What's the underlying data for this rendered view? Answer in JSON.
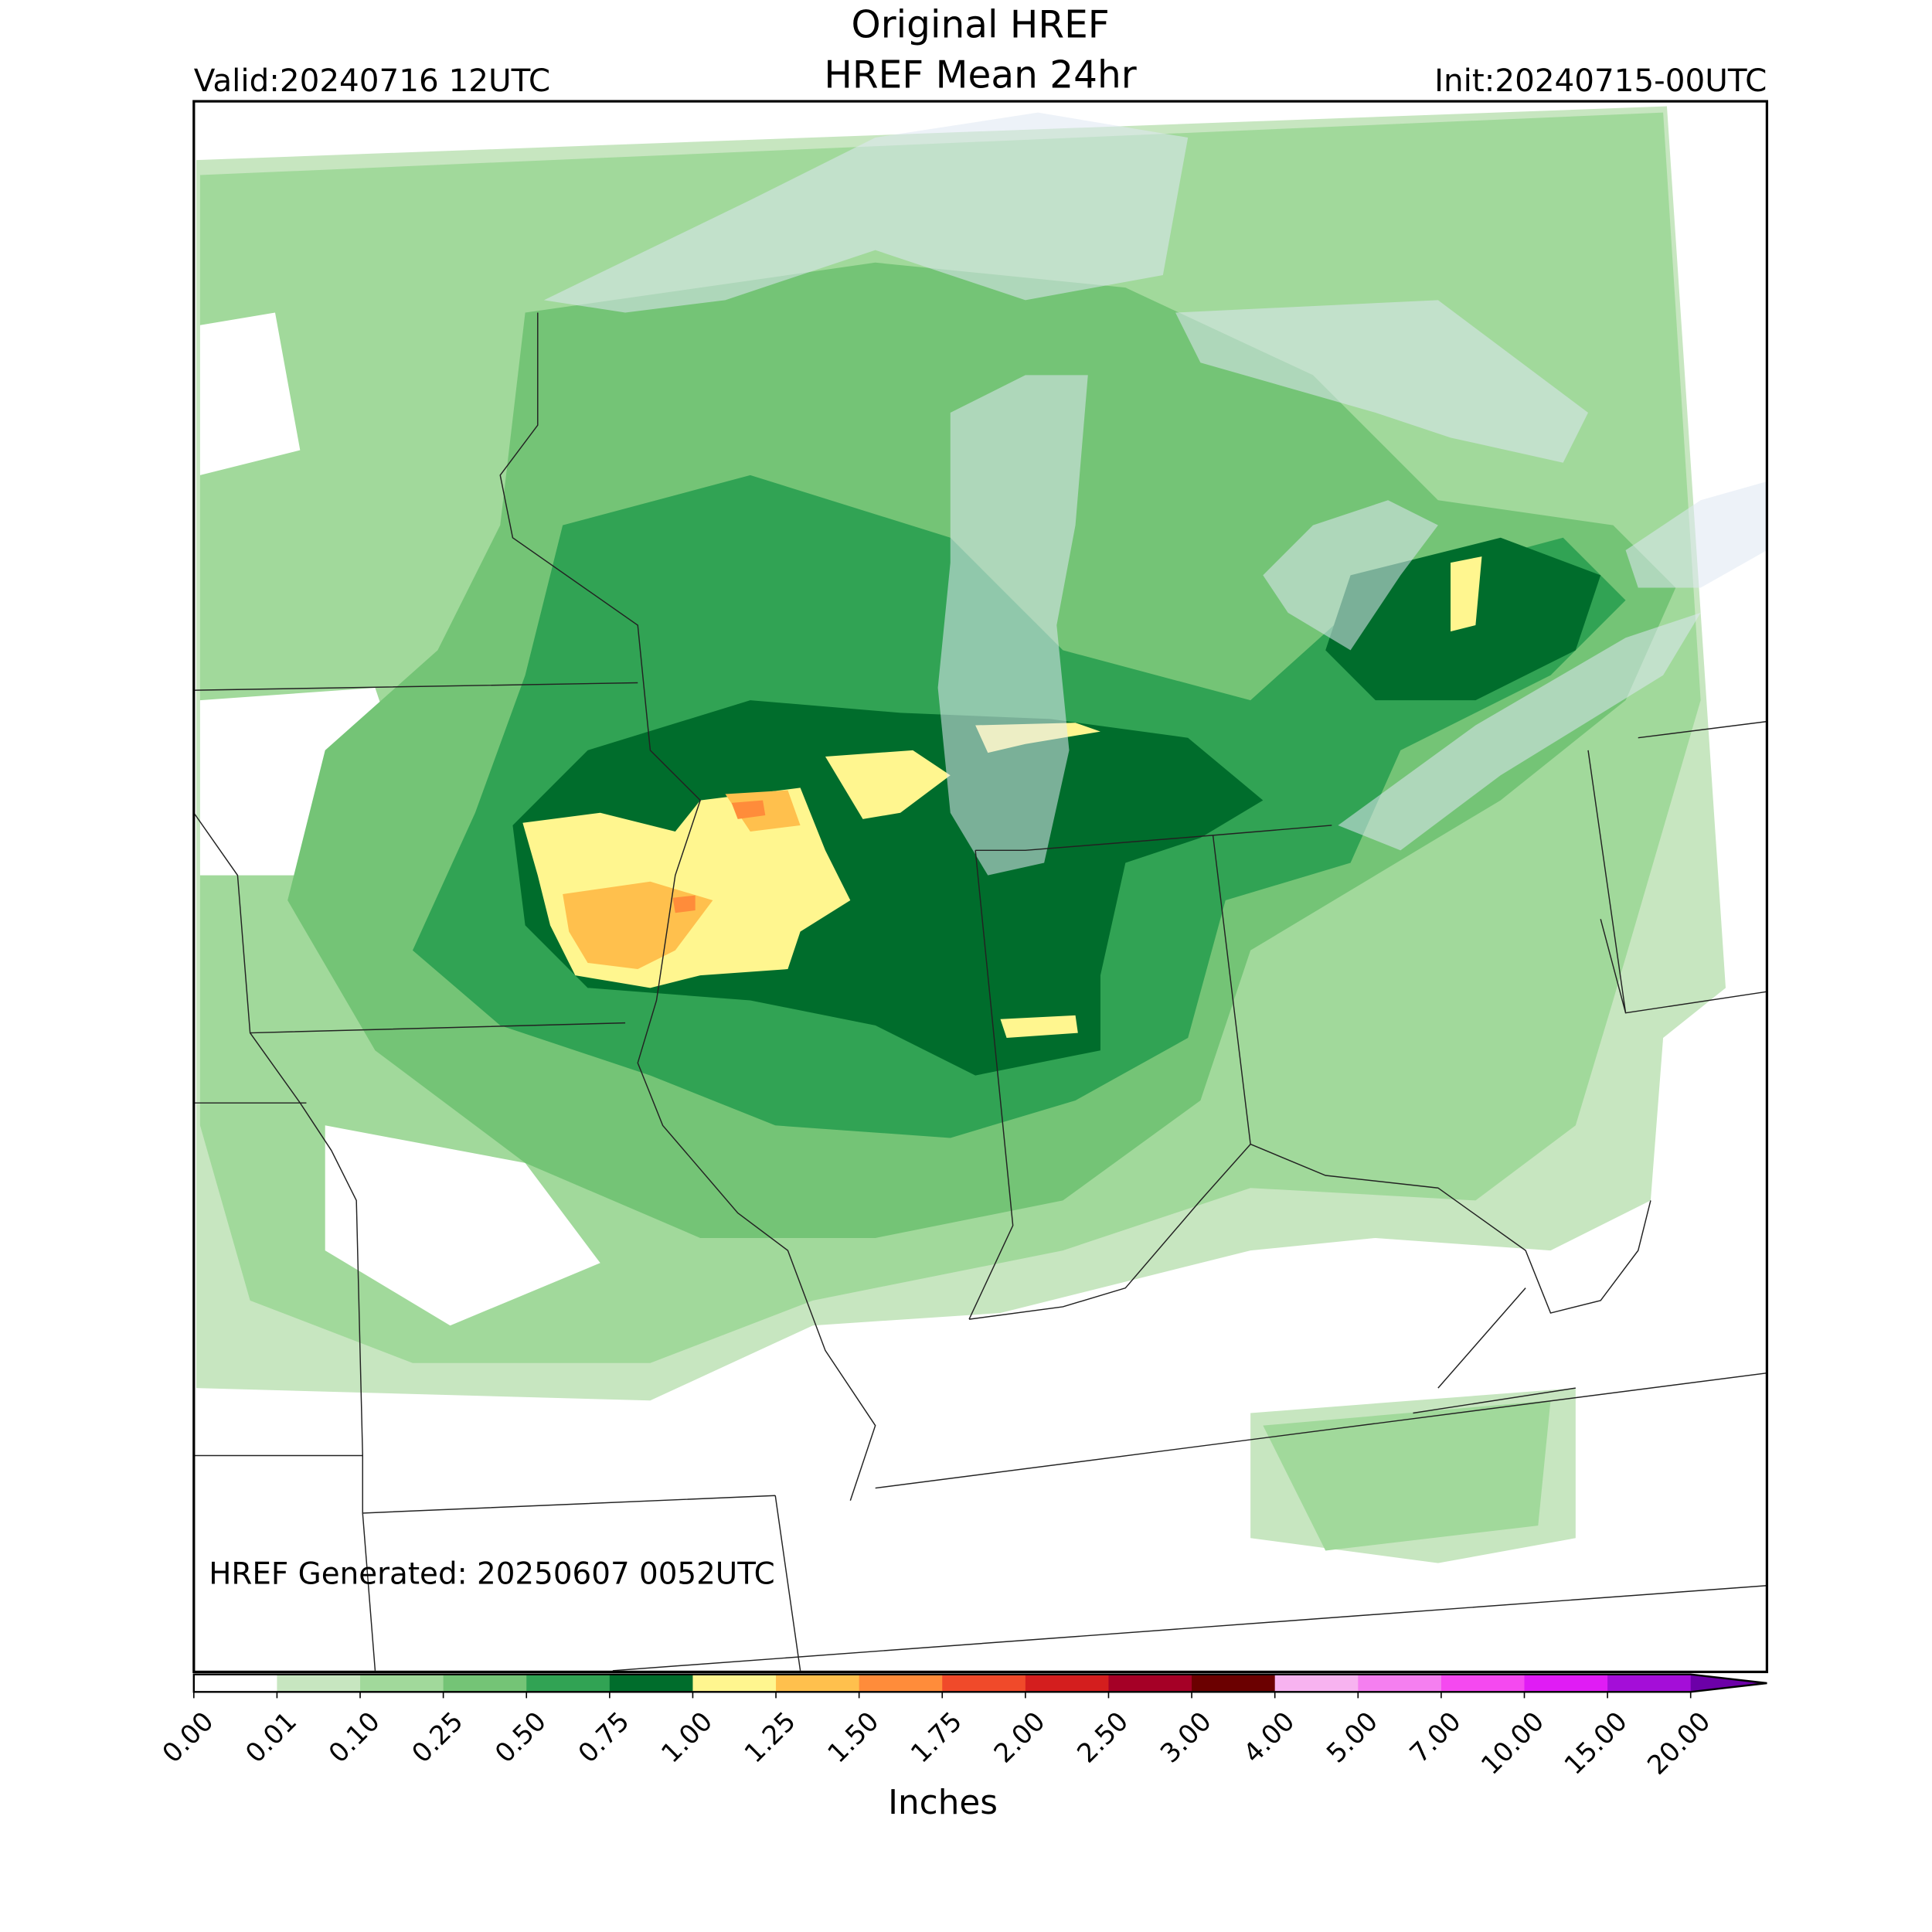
{
  "header": {
    "title": "Original HREF",
    "subtitle": "HREF Mean 24hr",
    "valid": "Valid:20240716 12UTC",
    "init": "Init:20240715-00UTC"
  },
  "map": {
    "note": "HREF Generated: 20250607 0052UTC"
  },
  "colorbar": {
    "label": "Inches",
    "ticks": [
      "0.00",
      "0.01",
      "0.10",
      "0.25",
      "0.50",
      "0.75",
      "1.00",
      "1.25",
      "1.50",
      "1.75",
      "2.00",
      "2.50",
      "3.00",
      "4.00",
      "5.00",
      "7.00",
      "10.00",
      "15.00",
      "20.00"
    ],
    "colors": [
      "#ffffff",
      "#c7e6c0",
      "#a1d99b",
      "#74c476",
      "#31a354",
      "#006d2c",
      "#fff68f",
      "#ffc04d",
      "#ff8c3a",
      "#f04a2a",
      "#d41e1e",
      "#a50026",
      "#6b0000",
      "#f7b3f0",
      "#f57ff0",
      "#f549f0",
      "#e01cf5",
      "#a40ed8"
    ],
    "extend_color": "#6c00a8"
  }
}
